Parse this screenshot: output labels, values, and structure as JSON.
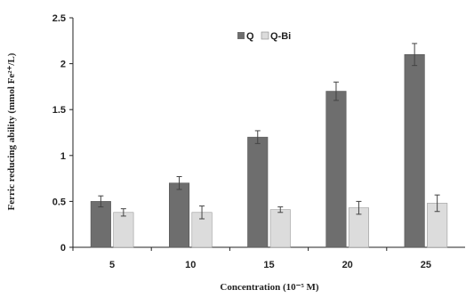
{
  "chart_data": {
    "type": "bar",
    "categories": [
      "5",
      "10",
      "15",
      "20",
      "25"
    ],
    "series": [
      {
        "name": "Q",
        "values": [
          0.5,
          0.7,
          1.2,
          1.7,
          2.1
        ],
        "errors": [
          0.06,
          0.07,
          0.07,
          0.1,
          0.12
        ],
        "color": "#6e6e6e"
      },
      {
        "name": "Q-Bi",
        "values": [
          0.38,
          0.38,
          0.41,
          0.43,
          0.48
        ],
        "errors": [
          0.04,
          0.07,
          0.03,
          0.07,
          0.09
        ],
        "color": "#dcdcdc"
      }
    ],
    "xlabel": "Concentration (10⁻⁵ M)",
    "ylabel": "Ferric reducing ability (mmol Fe²⁺/L)",
    "ylim": [
      0,
      2.5
    ],
    "yticks": [
      "0",
      "0.5",
      "1",
      "1.5",
      "2",
      "2.5"
    ],
    "legend": "top-center",
    "grid": false
  }
}
